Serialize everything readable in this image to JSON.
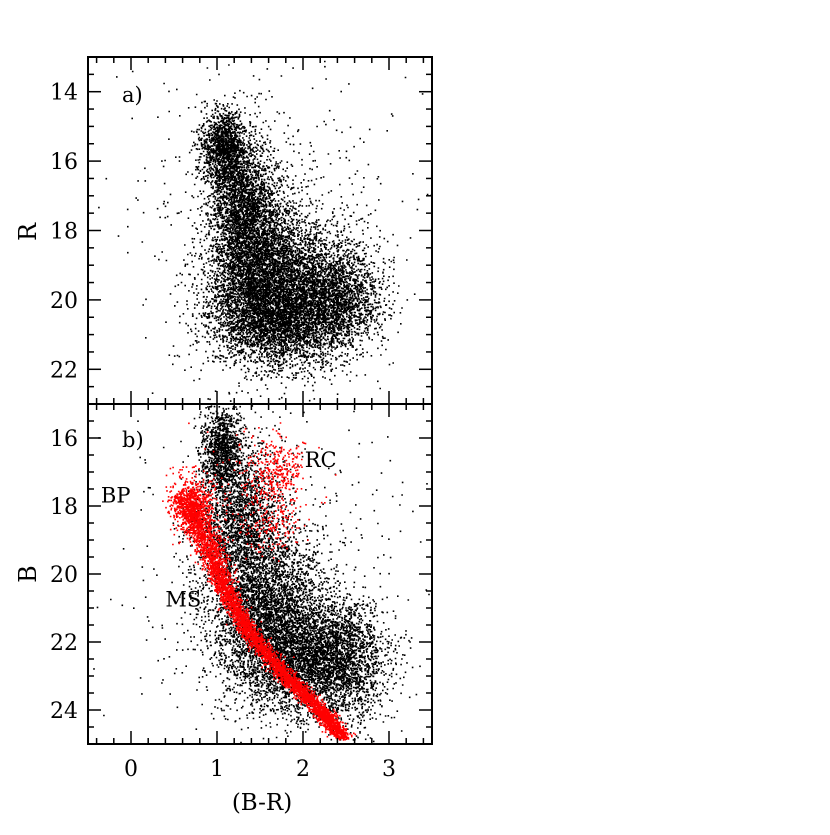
{
  "chart_data": [
    {
      "type": "scatter",
      "panel_label": "a)",
      "xlabel": "",
      "ylabel": "R",
      "xlim": [
        -0.5,
        3.5
      ],
      "ylim": [
        23,
        13
      ],
      "y_inverted": true,
      "xticks": [],
      "yticks": [
        14,
        16,
        18,
        20,
        22
      ],
      "ytick_labels": [
        "14",
        "16",
        "18",
        "20",
        "22"
      ],
      "series": [
        {
          "color": "#000000",
          "clusters": [
            {
              "cx": 1.08,
              "cy": 15.6,
              "sx": 0.13,
              "sy": 0.55,
              "n": 1400
            },
            {
              "cx": 1.3,
              "cy": 17.2,
              "sx": 0.2,
              "sy": 0.9,
              "n": 2200
            },
            {
              "cx": 1.5,
              "cy": 19.2,
              "sx": 0.3,
              "sy": 1.1,
              "n": 4200
            },
            {
              "cx": 1.75,
              "cy": 20.6,
              "sx": 0.4,
              "sy": 0.7,
              "n": 2600
            },
            {
              "cx": 2.15,
              "cy": 19.6,
              "sx": 0.35,
              "sy": 0.95,
              "n": 2200
            },
            {
              "cx": 2.45,
              "cy": 20.0,
              "sx": 0.25,
              "sy": 0.6,
              "n": 900
            },
            {
              "cx": 1.6,
              "cy": 17.5,
              "sx": 0.8,
              "sy": 2.6,
              "n": 500
            }
          ]
        }
      ]
    },
    {
      "type": "scatter",
      "panel_label": "b)",
      "xlabel": "(B-R)",
      "ylabel": "B",
      "xlim": [
        -0.5,
        3.5
      ],
      "ylim": [
        25,
        15
      ],
      "y_inverted": true,
      "xticks": [
        0,
        1,
        2,
        3
      ],
      "xtick_labels": [
        "0",
        "1",
        "2",
        "3"
      ],
      "yticks": [
        16,
        18,
        20,
        22,
        24
      ],
      "ytick_labels": [
        "16",
        "18",
        "20",
        "22",
        "24"
      ],
      "annotations": [
        {
          "text": "RC",
          "x": 2.02,
          "y": 16.85
        },
        {
          "text": "BP",
          "x": -0.35,
          "y": 17.9
        },
        {
          "text": "MS",
          "x": 0.4,
          "y": 20.95
        }
      ],
      "series": [
        {
          "color": "#000000",
          "clusters": [
            {
              "cx": 1.05,
              "cy": 16.3,
              "sx": 0.12,
              "sy": 0.6,
              "n": 1100
            },
            {
              "cx": 1.25,
              "cy": 18.5,
              "sx": 0.25,
              "sy": 1.1,
              "n": 2200
            },
            {
              "cx": 1.6,
              "cy": 21.0,
              "sx": 0.35,
              "sy": 1.1,
              "n": 3500
            },
            {
              "cx": 2.0,
              "cy": 22.6,
              "sx": 0.4,
              "sy": 0.8,
              "n": 3000
            },
            {
              "cx": 2.5,
              "cy": 22.4,
              "sx": 0.25,
              "sy": 0.9,
              "n": 1400
            },
            {
              "cx": 1.6,
              "cy": 19.5,
              "sx": 0.9,
              "sy": 2.8,
              "n": 450
            }
          ]
        },
        {
          "color": "#ff0000",
          "ms_ridge": {
            "x": [
              0.6,
              0.9,
              1.1,
              1.4,
              1.8,
              2.2,
              2.45
            ],
            "y": [
              17.6,
              19.2,
              20.5,
              21.8,
              23.0,
              24.0,
              24.8
            ],
            "width": 0.06,
            "n": 4500
          },
          "clusters": [
            {
              "cx": 0.72,
              "cy": 18.0,
              "sx": 0.12,
              "sy": 0.45,
              "n": 600
            },
            {
              "cx": 1.7,
              "cy": 16.9,
              "sx": 0.15,
              "sy": 0.5,
              "n": 250
            },
            {
              "cx": 1.6,
              "cy": 18.3,
              "sx": 0.2,
              "sy": 0.6,
              "n": 200
            },
            {
              "cx": 1.4,
              "cy": 17.3,
              "sx": 0.35,
              "sy": 0.8,
              "n": 120
            }
          ]
        }
      ]
    }
  ]
}
